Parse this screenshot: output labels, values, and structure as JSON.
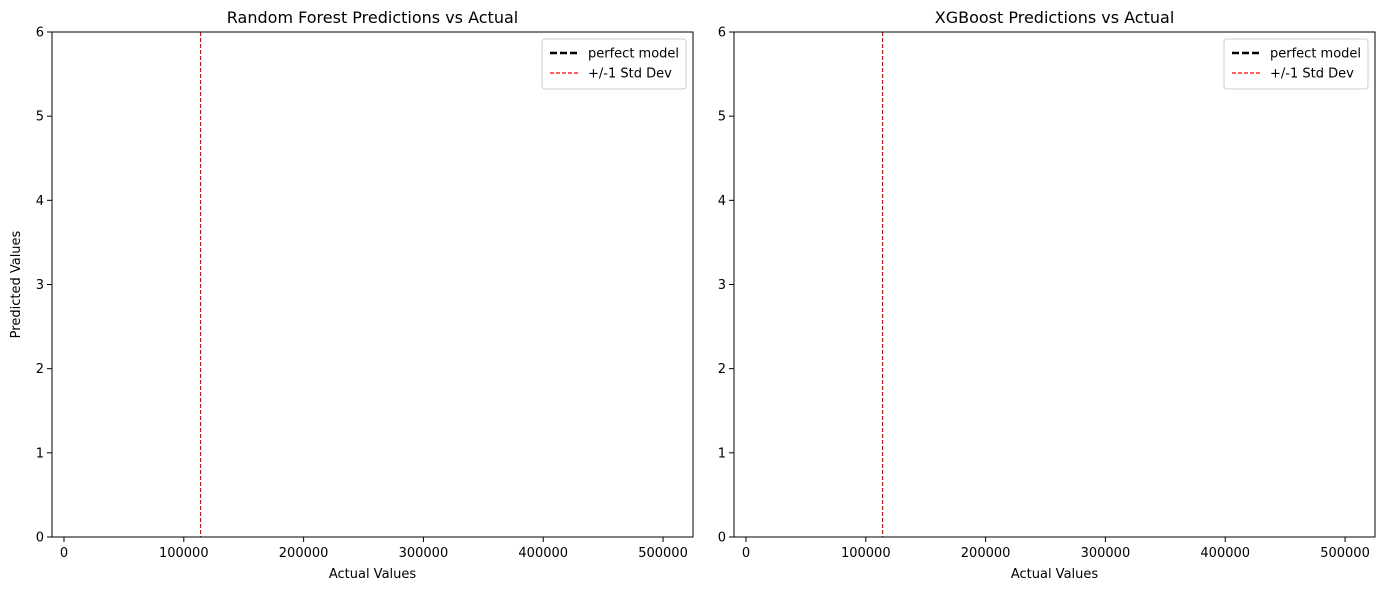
{
  "chart_data": [
    {
      "type": "scatter",
      "title": "Random Forest Predictions vs Actual",
      "xlabel": "Actual Values",
      "ylabel": "Predicted Values",
      "xlim": [
        -10000,
        525000
      ],
      "ylim": [
        0,
        6
      ],
      "x_ticks": [
        0,
        100000,
        200000,
        300000,
        400000,
        500000
      ],
      "x_tick_labels": [
        "0",
        "100000",
        "200000",
        "300000",
        "400000",
        "500000"
      ],
      "y_ticks": [
        0,
        1,
        2,
        3,
        4,
        5,
        6
      ],
      "y_tick_labels": [
        "0",
        "1",
        "2",
        "3",
        "4",
        "5",
        "6"
      ],
      "grid": false,
      "legend_position": "top-right",
      "series": [
        {
          "name": "perfect model",
          "style": "dashed",
          "color": "#000000",
          "points": []
        },
        {
          "name": "+/-1 Std Dev",
          "style": "dashed",
          "color": "#ff0000",
          "vline_x": 114000
        }
      ]
    },
    {
      "type": "scatter",
      "title": "XGBoost Predictions vs Actual",
      "xlabel": "Actual Values",
      "ylabel": "",
      "xlim": [
        -10000,
        525000
      ],
      "ylim": [
        0,
        6
      ],
      "x_ticks": [
        0,
        100000,
        200000,
        300000,
        400000,
        500000
      ],
      "x_tick_labels": [
        "0",
        "100000",
        "200000",
        "300000",
        "400000",
        "500000"
      ],
      "y_ticks": [
        0,
        1,
        2,
        3,
        4,
        5,
        6
      ],
      "y_tick_labels": [
        "0",
        "1",
        "2",
        "3",
        "4",
        "5",
        "6"
      ],
      "grid": false,
      "legend_position": "top-right",
      "series": [
        {
          "name": "perfect model",
          "style": "dashed",
          "color": "#000000",
          "points": []
        },
        {
          "name": "+/-1 Std Dev",
          "style": "dashed",
          "color": "#ff0000",
          "vline_x": 114000
        }
      ]
    }
  ]
}
